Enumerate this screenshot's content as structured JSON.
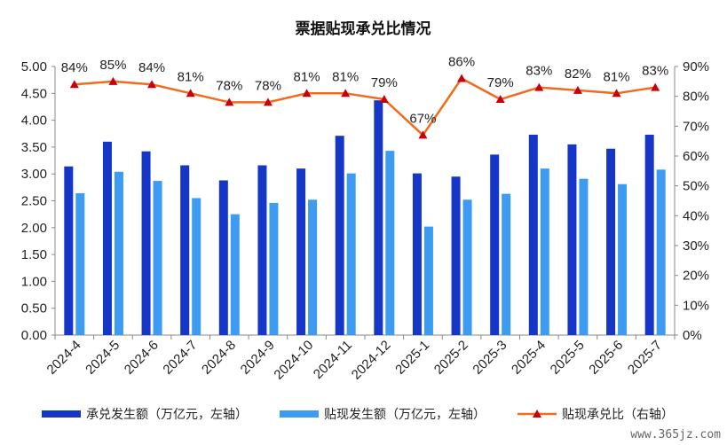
{
  "chart_data": {
    "type": "bar",
    "title": "票据贴现承兑比情况",
    "categories": [
      "2024-4",
      "2024-5",
      "2024-6",
      "2024-7",
      "2024-8",
      "2024-9",
      "2024-10",
      "2024-11",
      "2024-12",
      "2025-1",
      "2025-2",
      "2025-3",
      "2025-4",
      "2025-5",
      "2025-6",
      "2025-7"
    ],
    "series": [
      {
        "name": "承兑发生额（万亿元，左轴）",
        "type": "bar",
        "axis": "left",
        "color": "#1536c7",
        "values": [
          3.14,
          3.6,
          3.42,
          3.16,
          2.88,
          3.16,
          3.1,
          3.71,
          4.37,
          3.01,
          2.95,
          3.36,
          3.73,
          3.55,
          3.47,
          3.73
        ]
      },
      {
        "name": "贴现发生额（万亿元，左轴）",
        "type": "bar",
        "axis": "left",
        "color": "#3d9bf2",
        "values": [
          2.64,
          3.04,
          2.87,
          2.55,
          2.25,
          2.46,
          2.52,
          3.01,
          3.43,
          2.02,
          2.52,
          2.63,
          3.1,
          2.91,
          2.81,
          3.08
        ]
      },
      {
        "name": "贴现承兑比（右轴）",
        "type": "line",
        "axis": "right",
        "color": "#f26b1d",
        "marker_color": "#c8000a",
        "values": [
          84,
          85,
          84,
          81,
          78,
          78,
          81,
          81,
          79,
          67,
          86,
          79,
          83,
          82,
          81,
          83
        ],
        "labels": [
          "84%",
          "85%",
          "84%",
          "81%",
          "78%",
          "78%",
          "81%",
          "81%",
          "79%",
          "67%",
          "86%",
          "79%",
          "83%",
          "82%",
          "81%",
          "83%"
        ]
      }
    ],
    "y_left": {
      "min": 0,
      "max": 5,
      "ticks": [
        "0.00",
        "0.50",
        "1.00",
        "1.50",
        "2.00",
        "2.50",
        "3.00",
        "3.50",
        "4.00",
        "4.50",
        "5.00"
      ]
    },
    "y_right": {
      "min": 0,
      "max": 90,
      "ticks": [
        "0%",
        "10%",
        "20%",
        "30%",
        "40%",
        "50%",
        "60%",
        "70%",
        "80%",
        "90%"
      ]
    },
    "grid": false,
    "legend_position": "bottom"
  },
  "watermark": "www.365jz.com"
}
